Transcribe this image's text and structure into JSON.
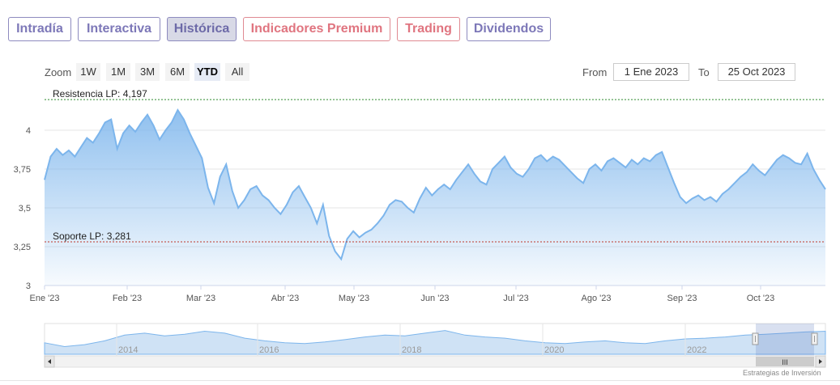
{
  "tabs": [
    {
      "label": "Intradía"
    },
    {
      "label": "Interactiva"
    },
    {
      "label": "Histórica"
    },
    {
      "label": "Indicadores Premium"
    },
    {
      "label": "Trading"
    },
    {
      "label": "Dividendos"
    }
  ],
  "active_tab": "Histórica",
  "colors": {
    "accent": "#7d78b8",
    "premium": "#e07580",
    "series": "#7cb5ec",
    "resistance": "#2e8b2e",
    "support": "#c0392b"
  },
  "zoom": {
    "label": "Zoom",
    "buttons": [
      "1W",
      "1M",
      "3M",
      "6M",
      "YTD",
      "All"
    ],
    "selected": "YTD"
  },
  "range": {
    "from_label": "From",
    "from_value": "1 Ene 2023",
    "to_label": "To",
    "to_value": "25 Oct 2023"
  },
  "chart_data": {
    "type": "area",
    "ylim": [
      3,
      4.25
    ],
    "yticks": [
      "3",
      "3,25",
      "3,5",
      "3,75",
      "4"
    ],
    "xticks": [
      "Ene '23",
      "Feb '23",
      "Mar '23",
      "Abr '23",
      "May '23",
      "Jun '23",
      "Jul '23",
      "Ago '23",
      "Sep '23",
      "Oct '23"
    ],
    "lines": [
      {
        "label": "Resistencia LP: 4,197",
        "value": 4.197,
        "color": "#2e8b2e"
      },
      {
        "label": "Soporte LP: 3,281",
        "value": 3.281,
        "color": "#c0392b"
      }
    ],
    "series": [
      {
        "values": [
          3.68,
          3.83,
          3.88,
          3.84,
          3.87,
          3.83,
          3.89,
          3.95,
          3.92,
          3.98,
          4.05,
          4.07,
          3.88,
          3.98,
          4.03,
          3.99,
          4.05,
          4.1,
          4.03,
          3.94,
          4.0,
          4.05,
          4.13,
          4.07,
          3.98,
          3.9,
          3.82,
          3.63,
          3.53,
          3.7,
          3.78,
          3.61,
          3.5,
          3.55,
          3.62,
          3.64,
          3.58,
          3.55,
          3.5,
          3.46,
          3.52,
          3.6,
          3.64,
          3.57,
          3.5,
          3.4,
          3.52,
          3.32,
          3.22,
          3.17,
          3.3,
          3.35,
          3.31,
          3.34,
          3.36,
          3.4,
          3.45,
          3.52,
          3.55,
          3.54,
          3.5,
          3.47,
          3.56,
          3.63,
          3.58,
          3.62,
          3.65,
          3.62,
          3.68,
          3.73,
          3.78,
          3.72,
          3.67,
          3.65,
          3.75,
          3.79,
          3.83,
          3.76,
          3.72,
          3.7,
          3.75,
          3.82,
          3.84,
          3.8,
          3.83,
          3.81,
          3.77,
          3.73,
          3.69,
          3.66,
          3.75,
          3.78,
          3.74,
          3.8,
          3.82,
          3.79,
          3.76,
          3.81,
          3.78,
          3.82,
          3.8,
          3.84,
          3.86,
          3.76,
          3.66,
          3.57,
          3.53,
          3.56,
          3.58,
          3.55,
          3.57,
          3.54,
          3.59,
          3.62,
          3.66,
          3.7,
          3.73,
          3.78,
          3.74,
          3.71,
          3.76,
          3.81,
          3.84,
          3.82,
          3.79,
          3.78,
          3.85,
          3.75,
          3.68,
          3.62
        ]
      }
    ]
  },
  "navigator": {
    "labels": [
      "2014",
      "2016",
      "2018",
      "2020",
      "2022"
    ],
    "values": [
      3.3,
      3.2,
      3.25,
      3.35,
      3.5,
      3.55,
      3.48,
      3.52,
      3.6,
      3.55,
      3.42,
      3.35,
      3.3,
      3.28,
      3.32,
      3.38,
      3.45,
      3.5,
      3.48,
      3.55,
      3.62,
      3.5,
      3.45,
      3.42,
      3.35,
      3.3,
      3.28,
      3.32,
      3.35,
      3.3,
      3.28,
      3.35,
      3.4,
      3.42,
      3.45,
      3.5,
      3.52,
      3.55,
      3.58,
      3.6
    ]
  },
  "credit": "Estrategias de Inversión"
}
